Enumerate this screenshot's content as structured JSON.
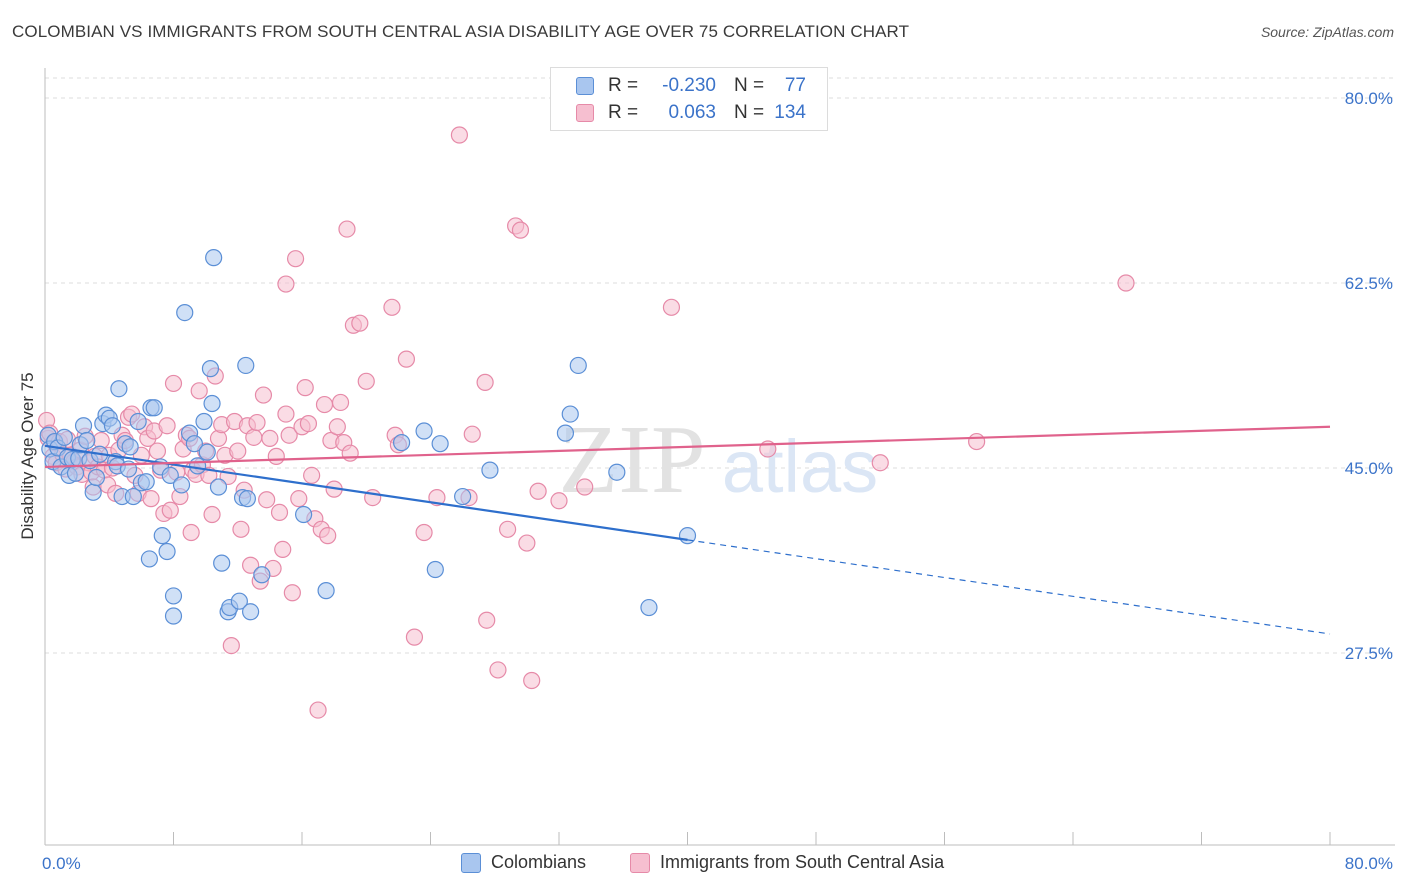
{
  "header": {
    "title": "COLOMBIAN VS IMMIGRANTS FROM SOUTH CENTRAL ASIA DISABILITY AGE OVER 75 CORRELATION CHART",
    "source": "Source: ZipAtlas.com"
  },
  "colors": {
    "colombians_fill": "#a9c6ef",
    "colombians_stroke": "#5b8fd6",
    "colombians_line": "#2e6fcc",
    "immigrants_fill": "#f6bfd0",
    "immigrants_stroke": "#e68aa8",
    "immigrants_line": "#e0628c",
    "axis_label": "#3b73c9",
    "grid": "#dedede"
  },
  "legend_top": {
    "rows": [
      {
        "r_label": "R =",
        "r_value": "-0.230",
        "n_label": "N =",
        "n_value": "77"
      },
      {
        "r_label": "R =",
        "r_value": "0.063",
        "n_label": "N =",
        "n_value": "134"
      }
    ]
  },
  "legend_bottom": {
    "items": [
      {
        "label": "Colombians"
      },
      {
        "label": "Immigrants from South Central Asia"
      }
    ]
  },
  "watermark": {
    "part1": "ZIP",
    "part2": "atlas"
  },
  "chart_data": {
    "type": "scatter",
    "title": "COLOMBIAN VS IMMIGRANTS FROM SOUTH CENTRAL ASIA DISABILITY AGE OVER 75 CORRELATION CHART",
    "xlabel": "",
    "ylabel": "Disability Age Over 75",
    "xlim": [
      0,
      80
    ],
    "ylim": [
      10,
      82
    ],
    "x_tick_labels": [
      "0.0%",
      "80.0%"
    ],
    "y_ticks": [
      27.5,
      45.0,
      62.5,
      80.0
    ],
    "y_tick_labels": [
      "27.5%",
      "45.0%",
      "62.5%",
      "80.0%"
    ],
    "grid": true,
    "legend_position": "top-center",
    "series": [
      {
        "name": "Colombians",
        "r": -0.23,
        "n": 77,
        "trend": {
          "x1": 0,
          "y1": 47.1,
          "x2": 40,
          "y2": 38.2,
          "dashed_to_x": 80,
          "dashed_to_y": 29.3
        },
        "points": [
          [
            0.2,
            48.1
          ],
          [
            0.3,
            46.8
          ],
          [
            0.5,
            45.6
          ],
          [
            0.6,
            47.5
          ],
          [
            0.8,
            46.9
          ],
          [
            1.0,
            45.1
          ],
          [
            1.2,
            47.9
          ],
          [
            1.4,
            46.0
          ],
          [
            1.5,
            44.3
          ],
          [
            1.7,
            45.8
          ],
          [
            1.9,
            44.5
          ],
          [
            2.1,
            45.9
          ],
          [
            2.2,
            47.2
          ],
          [
            2.4,
            49.0
          ],
          [
            2.6,
            47.6
          ],
          [
            2.8,
            45.7
          ],
          [
            3.0,
            42.7
          ],
          [
            3.2,
            44.1
          ],
          [
            3.4,
            46.3
          ],
          [
            3.6,
            49.2
          ],
          [
            3.8,
            50.0
          ],
          [
            4.0,
            49.7
          ],
          [
            4.2,
            49.0
          ],
          [
            4.4,
            45.6
          ],
          [
            4.5,
            45.2
          ],
          [
            4.6,
            52.5
          ],
          [
            4.8,
            42.3
          ],
          [
            5.0,
            47.3
          ],
          [
            5.2,
            44.9
          ],
          [
            5.3,
            47.0
          ],
          [
            5.5,
            42.3
          ],
          [
            5.8,
            49.4
          ],
          [
            6.0,
            43.6
          ],
          [
            6.3,
            43.7
          ],
          [
            6.5,
            36.4
          ],
          [
            6.6,
            50.7
          ],
          [
            6.8,
            50.7
          ],
          [
            7.2,
            45.1
          ],
          [
            7.3,
            38.6
          ],
          [
            7.6,
            37.1
          ],
          [
            7.8,
            44.3
          ],
          [
            8.0,
            32.9
          ],
          [
            8.0,
            31.0
          ],
          [
            8.5,
            43.4
          ],
          [
            8.7,
            59.7
          ],
          [
            9.0,
            48.3
          ],
          [
            9.3,
            47.3
          ],
          [
            9.5,
            45.2
          ],
          [
            9.9,
            49.4
          ],
          [
            10.1,
            46.5
          ],
          [
            10.3,
            54.4
          ],
          [
            10.4,
            51.1
          ],
          [
            10.5,
            64.9
          ],
          [
            10.8,
            43.2
          ],
          [
            11.0,
            36.0
          ],
          [
            11.4,
            31.4
          ],
          [
            11.5,
            31.8
          ],
          [
            12.1,
            32.4
          ],
          [
            12.3,
            42.2
          ],
          [
            12.5,
            54.7
          ],
          [
            12.6,
            42.1
          ],
          [
            12.8,
            31.4
          ],
          [
            13.5,
            34.9
          ],
          [
            16.1,
            40.6
          ],
          [
            17.5,
            33.4
          ],
          [
            22.2,
            47.4
          ],
          [
            23.6,
            48.5
          ],
          [
            24.3,
            35.4
          ],
          [
            24.6,
            47.3
          ],
          [
            26.0,
            42.3
          ],
          [
            27.7,
            44.8
          ],
          [
            32.4,
            48.3
          ],
          [
            32.7,
            50.1
          ],
          [
            33.2,
            54.7
          ],
          [
            35.6,
            44.6
          ],
          [
            37.6,
            31.8
          ],
          [
            40.0,
            38.6
          ]
        ]
      },
      {
        "name": "Immigrants from South Central Asia",
        "r": 0.063,
        "n": 134,
        "trend": {
          "x1": 0,
          "y1": 45.1,
          "x2": 80,
          "y2": 48.9
        },
        "points": [
          [
            0.1,
            49.5
          ],
          [
            0.2,
            47.8
          ],
          [
            0.3,
            48.3
          ],
          [
            0.5,
            46.1
          ],
          [
            0.6,
            47.4
          ],
          [
            0.7,
            45.5
          ],
          [
            0.9,
            47.5
          ],
          [
            1.1,
            46.3
          ],
          [
            1.3,
            44.9
          ],
          [
            1.4,
            47.7
          ],
          [
            1.6,
            46.2
          ],
          [
            1.8,
            45.6
          ],
          [
            2.0,
            45.1
          ],
          [
            2.2,
            46.7
          ],
          [
            2.3,
            44.4
          ],
          [
            2.5,
            48.0
          ],
          [
            2.7,
            45.5
          ],
          [
            2.9,
            44.6
          ],
          [
            3.0,
            43.2
          ],
          [
            3.1,
            46.1
          ],
          [
            3.3,
            45.1
          ],
          [
            3.5,
            47.6
          ],
          [
            3.7,
            44.8
          ],
          [
            3.9,
            43.4
          ],
          [
            4.0,
            46.2
          ],
          [
            4.2,
            45.0
          ],
          [
            4.4,
            42.6
          ],
          [
            4.6,
            46.7
          ],
          [
            4.8,
            48.1
          ],
          [
            5.0,
            47.6
          ],
          [
            5.2,
            49.8
          ],
          [
            5.4,
            50.1
          ],
          [
            5.6,
            44.3
          ],
          [
            5.8,
            42.6
          ],
          [
            6.0,
            46.2
          ],
          [
            6.2,
            48.9
          ],
          [
            6.4,
            47.8
          ],
          [
            6.6,
            42.1
          ],
          [
            6.8,
            48.5
          ],
          [
            7.0,
            46.6
          ],
          [
            7.2,
            44.8
          ],
          [
            7.4,
            40.7
          ],
          [
            7.6,
            49.0
          ],
          [
            7.8,
            41.0
          ],
          [
            8.0,
            53.0
          ],
          [
            8.2,
            44.6
          ],
          [
            8.4,
            42.3
          ],
          [
            8.6,
            46.8
          ],
          [
            8.8,
            48.1
          ],
          [
            9.0,
            47.8
          ],
          [
            9.1,
            38.9
          ],
          [
            9.2,
            44.8
          ],
          [
            9.4,
            44.4
          ],
          [
            9.6,
            52.3
          ],
          [
            9.8,
            45.3
          ],
          [
            10.0,
            46.6
          ],
          [
            10.2,
            44.3
          ],
          [
            10.4,
            40.6
          ],
          [
            10.6,
            53.7
          ],
          [
            10.8,
            47.8
          ],
          [
            11.0,
            49.1
          ],
          [
            11.2,
            46.2
          ],
          [
            11.4,
            44.2
          ],
          [
            11.6,
            28.2
          ],
          [
            11.8,
            49.4
          ],
          [
            12.0,
            46.6
          ],
          [
            12.2,
            39.2
          ],
          [
            12.4,
            42.9
          ],
          [
            12.6,
            49.0
          ],
          [
            12.8,
            35.8
          ],
          [
            13.0,
            47.9
          ],
          [
            13.2,
            49.3
          ],
          [
            13.4,
            34.3
          ],
          [
            13.6,
            51.9
          ],
          [
            13.8,
            42.0
          ],
          [
            14.0,
            47.8
          ],
          [
            14.2,
            35.5
          ],
          [
            14.4,
            46.1
          ],
          [
            14.6,
            40.8
          ],
          [
            14.8,
            37.3
          ],
          [
            15.0,
            50.1
          ],
          [
            15.0,
            62.4
          ],
          [
            15.2,
            48.1
          ],
          [
            15.4,
            33.2
          ],
          [
            15.6,
            64.8
          ],
          [
            15.8,
            42.1
          ],
          [
            16.0,
            48.9
          ],
          [
            16.2,
            52.6
          ],
          [
            16.4,
            49.2
          ],
          [
            16.6,
            44.3
          ],
          [
            16.8,
            40.2
          ],
          [
            17.0,
            22.1
          ],
          [
            17.2,
            39.2
          ],
          [
            17.4,
            51.0
          ],
          [
            17.6,
            38.6
          ],
          [
            17.8,
            47.6
          ],
          [
            18.0,
            43.0
          ],
          [
            18.2,
            48.9
          ],
          [
            18.4,
            51.2
          ],
          [
            18.6,
            47.4
          ],
          [
            18.8,
            67.6
          ],
          [
            19.0,
            46.4
          ],
          [
            19.2,
            58.5
          ],
          [
            19.6,
            58.7
          ],
          [
            20.0,
            53.2
          ],
          [
            20.4,
            42.2
          ],
          [
            21.6,
            60.2
          ],
          [
            21.8,
            48.1
          ],
          [
            22.0,
            47.2
          ],
          [
            22.5,
            55.3
          ],
          [
            23.0,
            29.0
          ],
          [
            23.6,
            38.9
          ],
          [
            24.4,
            42.2
          ],
          [
            25.8,
            76.5
          ],
          [
            26.4,
            42.2
          ],
          [
            26.6,
            48.2
          ],
          [
            27.4,
            53.1
          ],
          [
            27.5,
            30.6
          ],
          [
            28.2,
            25.9
          ],
          [
            28.8,
            39.2
          ],
          [
            29.3,
            67.9
          ],
          [
            29.6,
            67.5
          ],
          [
            30.0,
            37.9
          ],
          [
            30.3,
            24.9
          ],
          [
            30.7,
            42.8
          ],
          [
            32.0,
            41.9
          ],
          [
            33.6,
            43.2
          ],
          [
            39.0,
            60.2
          ],
          [
            67.3,
            62.5
          ],
          [
            52.0,
            45.5
          ],
          [
            58.0,
            47.5
          ],
          [
            45.0,
            46.8
          ]
        ]
      }
    ]
  }
}
